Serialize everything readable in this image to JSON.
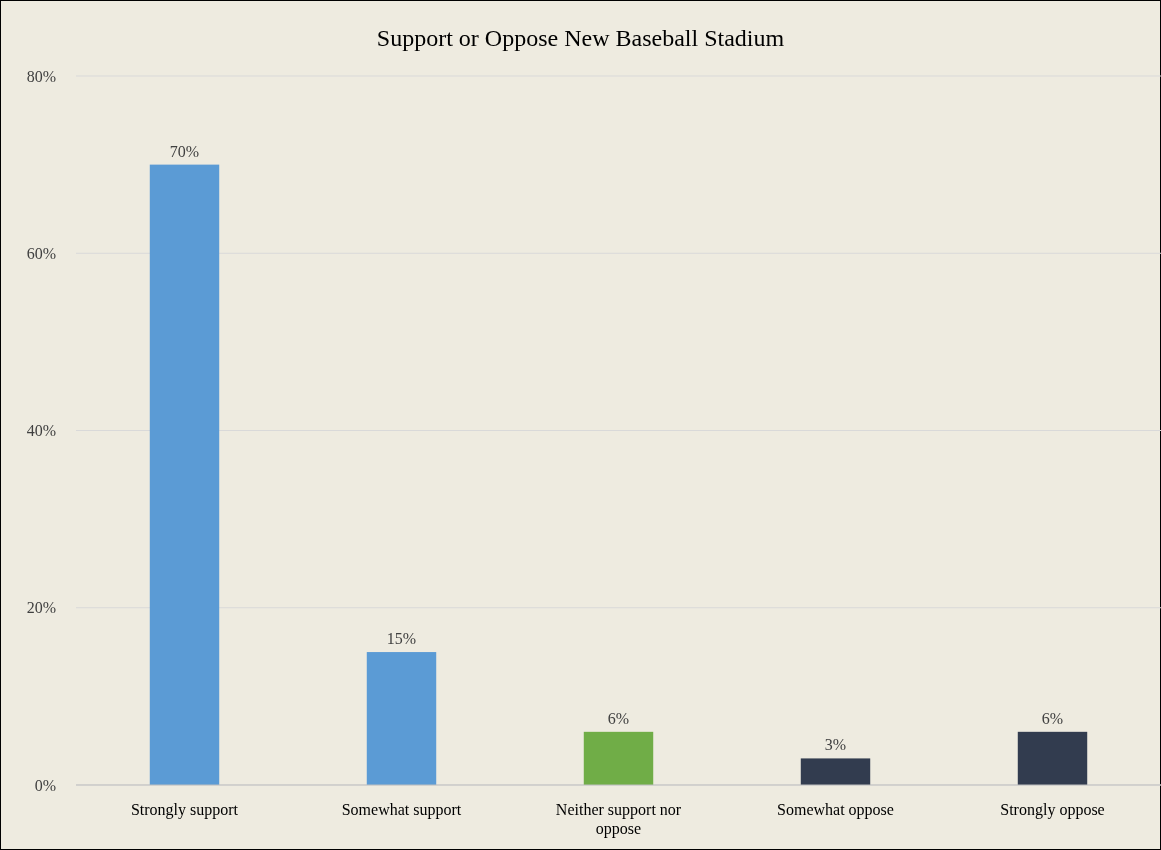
{
  "chart_data": {
    "type": "bar",
    "title": "Support or Oppose New Baseball Stadium",
    "categories": [
      "Strongly support",
      "Somewhat support",
      "Neither support nor oppose",
      "Somewhat oppose",
      "Strongly oppose"
    ],
    "values": [
      70,
      15,
      6,
      3,
      6
    ],
    "colors": [
      "#5b9bd5",
      "#5b9bd5",
      "#70ad47",
      "#323c4f",
      "#323c4f"
    ],
    "value_labels": [
      "70%",
      "15%",
      "6%",
      "3%",
      "6%"
    ],
    "ylim": [
      0,
      80
    ],
    "yticks": [
      {
        "value": 0,
        "label": "0%"
      },
      {
        "value": 20,
        "label": "20%"
      },
      {
        "value": 40,
        "label": "40%"
      },
      {
        "value": 60,
        "label": "60%"
      },
      {
        "value": 80,
        "label": "80%"
      }
    ],
    "grid": "y"
  }
}
